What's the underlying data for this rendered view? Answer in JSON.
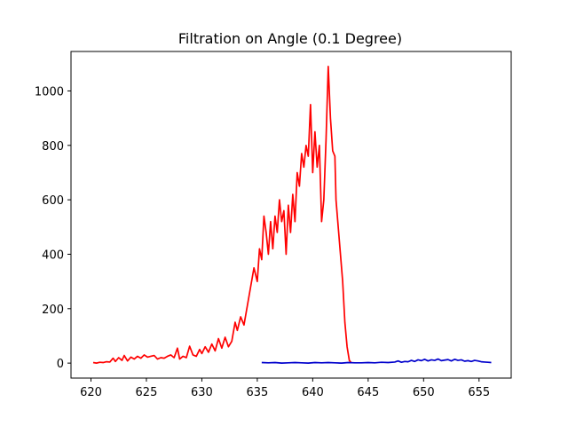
{
  "chart_data": {
    "type": "line",
    "title": "Filtration on Angle (0.1 Degree)",
    "xlabel": "",
    "ylabel": "",
    "xlim": [
      618.2,
      657.9
    ],
    "ylim": [
      -55,
      1145
    ],
    "xticks": [
      620,
      625,
      630,
      635,
      640,
      645,
      650,
      655
    ],
    "yticks": [
      0,
      200,
      400,
      600,
      800,
      1000
    ],
    "grid": false,
    "legend": "none",
    "series": [
      {
        "color": "#ff0000",
        "x": [
          620.2,
          620.5,
          620.8,
          621.1,
          621.4,
          621.7,
          622.0,
          622.2,
          622.5,
          622.8,
          623.0,
          623.3,
          623.6,
          623.9,
          624.2,
          624.5,
          624.8,
          625.1,
          625.4,
          625.7,
          626.0,
          626.3,
          626.6,
          626.9,
          627.2,
          627.5,
          627.8,
          628.0,
          628.3,
          628.6,
          628.9,
          629.2,
          629.5,
          629.8,
          630.0,
          630.3,
          630.6,
          630.9,
          631.2,
          631.5,
          631.8,
          632.1,
          632.4,
          632.7,
          633.0,
          633.2,
          633.5,
          633.8,
          634.1,
          634.4,
          634.7,
          635.0,
          635.2,
          635.4,
          635.6,
          635.8,
          636.0,
          636.2,
          636.4,
          636.6,
          636.8,
          637.0,
          637.2,
          637.4,
          637.6,
          637.8,
          638.0,
          638.2,
          638.4,
          638.6,
          638.8,
          639.0,
          639.2,
          639.4,
          639.6,
          639.8,
          640.0,
          640.2,
          640.4,
          640.6,
          640.8,
          641.0,
          641.2,
          641.4,
          641.6,
          641.8,
          642.0,
          642.1,
          642.3,
          642.5,
          642.7,
          642.9,
          643.1,
          643.3,
          643.5
        ],
        "y": [
          2,
          0,
          3,
          2,
          5,
          4,
          18,
          6,
          20,
          10,
          28,
          8,
          22,
          15,
          25,
          18,
          30,
          22,
          25,
          28,
          15,
          20,
          18,
          25,
          30,
          20,
          55,
          15,
          25,
          20,
          62,
          30,
          25,
          50,
          35,
          60,
          40,
          70,
          45,
          90,
          55,
          95,
          60,
          80,
          150,
          120,
          170,
          140,
          210,
          280,
          350,
          300,
          420,
          380,
          540,
          480,
          400,
          520,
          420,
          540,
          480,
          600,
          520,
          560,
          400,
          580,
          480,
          620,
          520,
          700,
          650,
          770,
          720,
          800,
          760,
          950,
          700,
          850,
          720,
          800,
          520,
          600,
          820,
          1090,
          900,
          780,
          760,
          600,
          500,
          400,
          300,
          150,
          60,
          10,
          0
        ]
      },
      {
        "color": "#0000cc",
        "x": [
          635.4,
          636.0,
          636.6,
          637.2,
          637.8,
          638.4,
          639.0,
          639.6,
          640.2,
          640.8,
          641.4,
          642.0,
          642.6,
          643.2,
          643.8,
          644.4,
          645.0,
          645.6,
          646.2,
          646.8,
          647.4,
          647.7,
          648.0,
          648.3,
          648.6,
          648.9,
          649.2,
          649.5,
          649.8,
          650.1,
          650.4,
          650.7,
          651.0,
          651.3,
          651.6,
          651.9,
          652.2,
          652.5,
          652.8,
          653.1,
          653.4,
          653.7,
          654.0,
          654.3,
          654.6,
          654.9,
          655.2,
          655.5,
          655.8,
          656.1
        ],
        "y": [
          2,
          1,
          2,
          0,
          1,
          2,
          1,
          0,
          2,
          1,
          2,
          1,
          0,
          2,
          1,
          1,
          2,
          1,
          3,
          2,
          4,
          8,
          3,
          6,
          5,
          10,
          6,
          12,
          9,
          14,
          8,
          12,
          10,
          15,
          9,
          11,
          13,
          8,
          14,
          10,
          12,
          7,
          9,
          6,
          10,
          8,
          5,
          4,
          3,
          2
        ]
      }
    ]
  }
}
